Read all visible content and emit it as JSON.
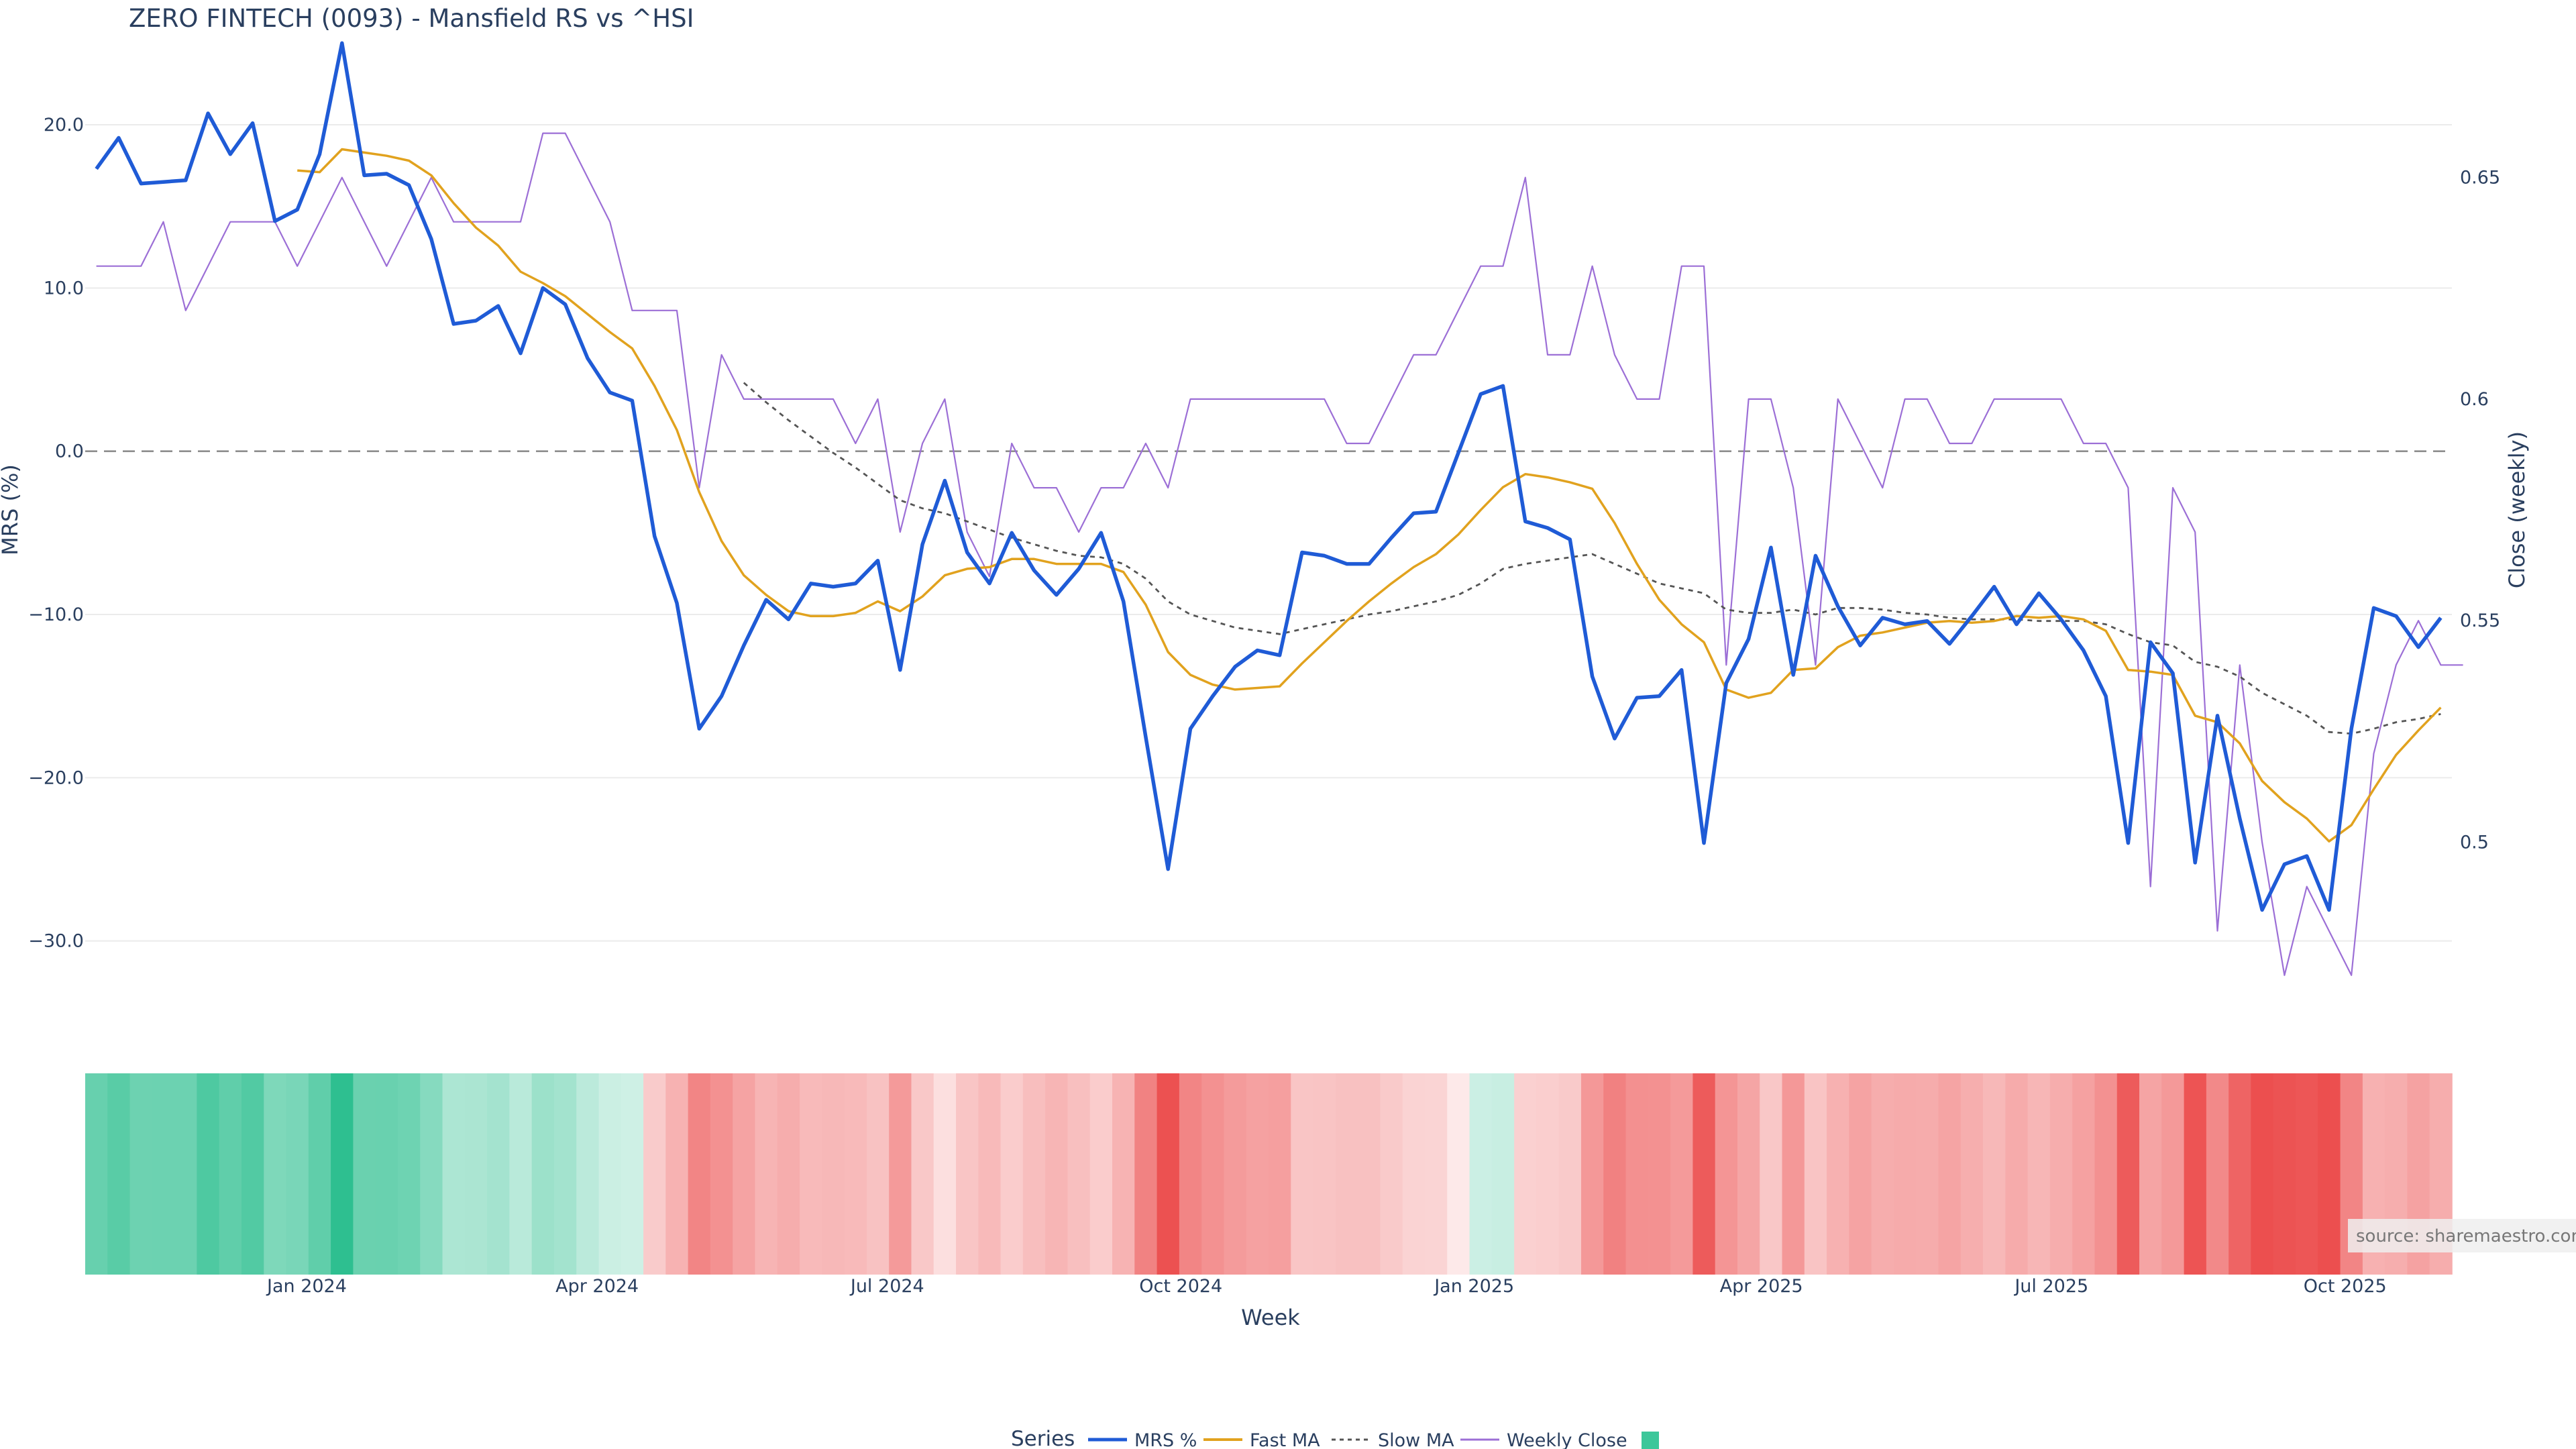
{
  "chart_data": {
    "type": "line",
    "title": "ZERO FINTECH (0093) - Mansfield RS vs ^HSI",
    "xlabel": "Week",
    "ylabel_left": "MRS (%)",
    "ylabel_right": "Close (weekly)",
    "x_start": "2023-10-27",
    "x_tick_labels": [
      "Jan 2024",
      "Apr 2024",
      "Jul 2024",
      "Oct 2024",
      "Jan 2025",
      "Apr 2025",
      "Jul 2025",
      "Oct 2025"
    ],
    "x_tick_dates": [
      "2024-01-01",
      "2024-04-01",
      "2024-07-01",
      "2024-10-01",
      "2025-01-01",
      "2025-04-01",
      "2025-07-01",
      "2025-10-01"
    ],
    "y_left_ticks": [
      20,
      10,
      0,
      -10,
      -20,
      -30
    ],
    "y_left_tick_labels": [
      "20.0",
      "10.0",
      "0.0",
      "−10.0",
      "−20.0",
      "−30.0"
    ],
    "ylim_left": [
      -34,
      26
    ],
    "y_right_ticks": [
      0.65,
      0.6,
      0.55,
      0.5
    ],
    "y_right_tick_labels": [
      "0.65",
      "0.6",
      "0.55",
      "0.5"
    ],
    "ylim_right": [
      0.463,
      0.684
    ],
    "zero_line": true,
    "grid": true,
    "series": [
      {
        "name": "MRS %",
        "color": "#1f5bd6",
        "values": [
          17.3,
          19.2,
          16.4,
          16.5,
          16.6,
          20.7,
          18.2,
          20.1,
          14.1,
          14.8,
          18.2,
          25,
          16.9,
          17,
          16.3,
          13,
          7.8,
          8,
          8.9,
          6,
          10,
          9,
          5.7,
          3.6,
          3.1,
          -5.2,
          -9.3,
          -17,
          -15,
          -11.9,
          -9.1,
          -10.3,
          -8.1,
          -8.3,
          -8.1,
          -6.7,
          -13.4,
          -5.7,
          -1.8,
          -6.2,
          -8.1,
          -5,
          -7.3,
          -8.8,
          -7.2,
          -5,
          -9.2,
          -17.5,
          -25.6,
          -17,
          -15,
          -13.2,
          -12.2,
          -12.5,
          -6.2,
          -6.4,
          -6.9,
          -6.9,
          -5.3,
          -3.8,
          -3.7,
          -0.1,
          3.5,
          4,
          -4.3,
          -4.7,
          -5.4,
          -13.8,
          -17.6,
          -15.1,
          -15,
          -13.4,
          -24,
          -14.2,
          -11.5,
          -5.9,
          -13.7,
          -6.4,
          -9.5,
          -11.9,
          -10.2,
          -10.6,
          -10.4,
          -11.8,
          -10.1,
          -8.3,
          -10.6,
          -8.7,
          -10.3,
          -12.2,
          -15,
          -24,
          -11.7,
          -13.6,
          -25.2,
          -16.2,
          -22.5,
          -28.1,
          -25.3,
          -24.8,
          -28.1,
          -17,
          -9.6,
          -10.1,
          -12,
          -10.2
        ]
      },
      {
        "name": "Fast MA",
        "color": "#e1a21e",
        "values": [
          null,
          null,
          null,
          null,
          null,
          null,
          null,
          null,
          null,
          17.2,
          17.1,
          18.5,
          18.3,
          18.1,
          17.8,
          16.9,
          15.2,
          13.7,
          12.6,
          11,
          10.3,
          9.5,
          8.4,
          7.3,
          6.3,
          4,
          1.3,
          -2.5,
          -5.5,
          -7.6,
          -8.8,
          -9.8,
          -10.1,
          -10.1,
          -9.9,
          -9.2,
          -9.8,
          -8.9,
          -7.6,
          -7.2,
          -7.1,
          -6.6,
          -6.6,
          -6.9,
          -6.9,
          -6.9,
          -7.4,
          -9.4,
          -12.3,
          -13.7,
          -14.3,
          -14.6,
          -14.5,
          -14.4,
          -13,
          -11.7,
          -10.4,
          -9.2,
          -8.1,
          -7.1,
          -6.3,
          -5.1,
          -3.6,
          -2.2,
          -1.4,
          -1.6,
          -1.9,
          -2.3,
          -4.4,
          -6.9,
          -9.1,
          -10.6,
          -11.7,
          -14.6,
          -15.1,
          -14.8,
          -13.4,
          -13.3,
          -12,
          -11.3,
          -11.1,
          -10.8,
          -10.5,
          -10.4,
          -10.5,
          -10.4,
          -10.1,
          -10.2,
          -10.1,
          -10.3,
          -11,
          -13.4,
          -13.5,
          -13.7,
          -16.2,
          -16.6,
          -17.9,
          -20.2,
          -21.5,
          -22.5,
          -23.9,
          -22.9,
          -20.7,
          -18.6,
          -17.1,
          -15.7
        ]
      },
      {
        "name": "Slow MA",
        "color": "#555555",
        "dash": true,
        "values": [
          null,
          null,
          null,
          null,
          null,
          null,
          null,
          null,
          null,
          null,
          null,
          null,
          null,
          null,
          null,
          null,
          null,
          null,
          null,
          null,
          null,
          null,
          null,
          null,
          null,
          null,
          null,
          null,
          null,
          4.2,
          3,
          1.9,
          0.9,
          -0.1,
          -1,
          -2,
          -3,
          -3.5,
          -3.8,
          -4.3,
          -4.8,
          -5.3,
          -5.7,
          -6.1,
          -6.4,
          -6.5,
          -6.9,
          -7.8,
          -9.2,
          -10,
          -10.4,
          -10.8,
          -11,
          -11.2,
          -10.9,
          -10.6,
          -10.3,
          -10,
          -9.8,
          -9.5,
          -9.2,
          -8.8,
          -8.1,
          -7.2,
          -6.9,
          -6.7,
          -6.5,
          -6.3,
          -6.9,
          -7.5,
          -8.1,
          -8.4,
          -8.7,
          -9.7,
          -9.9,
          -9.9,
          -9.7,
          -10,
          -9.6,
          -9.6,
          -9.7,
          -9.9,
          -10,
          -10.2,
          -10.3,
          -10.3,
          -10.3,
          -10.4,
          -10.4,
          -10.4,
          -10.6,
          -11.2,
          -11.7,
          -11.9,
          -12.9,
          -13.2,
          -13.8,
          -14.8,
          -15.5,
          -16.2,
          -17.2,
          -17.3,
          -17,
          -16.6,
          -16.4,
          -16.1
        ]
      },
      {
        "name": "Weekly Close",
        "color": "#9c6fd6",
        "axis": "right",
        "values": [
          0.63,
          0.63,
          0.63,
          0.64,
          0.62,
          0.63,
          0.64,
          0.64,
          0.64,
          0.63,
          0.64,
          0.65,
          0.64,
          0.63,
          0.64,
          0.65,
          0.64,
          0.64,
          0.64,
          0.64,
          0.66,
          0.66,
          0.65,
          0.64,
          0.62,
          0.62,
          0.62,
          0.58,
          0.61,
          0.6,
          0.6,
          0.6,
          0.6,
          0.6,
          0.59,
          0.6,
          0.57,
          0.59,
          0.6,
          0.57,
          0.56,
          0.59,
          0.58,
          0.58,
          0.57,
          0.58,
          0.58,
          0.59,
          0.58,
          0.6,
          0.6,
          0.6,
          0.6,
          0.6,
          0.6,
          0.6,
          0.59,
          0.59,
          0.6,
          0.61,
          0.61,
          0.62,
          0.63,
          0.63,
          0.65,
          0.61,
          0.61,
          0.63,
          0.61,
          0.6,
          0.6,
          0.63,
          0.63,
          0.54,
          0.6,
          0.6,
          0.58,
          0.54,
          0.6,
          0.59,
          0.58,
          0.6,
          0.6,
          0.59,
          0.59,
          0.6,
          0.6,
          0.6,
          0.6,
          0.59,
          0.59,
          0.58,
          0.49,
          0.58,
          0.57,
          0.48,
          0.54,
          0.5,
          0.47,
          0.49,
          0.48,
          0.47,
          0.52,
          0.54,
          0.55,
          0.54,
          0.54
        ]
      }
    ],
    "heatmap_strip": {
      "description_values": "MRS % per week (sign and magnitude drive the green/red cell colors)",
      "positive_color": "#27bd8c",
      "negative_color": "#ec4f4f"
    },
    "legend": {
      "title": "Series",
      "position": "bottom-center",
      "items": [
        "MRS %",
        "Fast MA",
        "Slow MA",
        "Weekly Close",
        ""
      ]
    },
    "source_note": "source: sharemaestro.com"
  }
}
